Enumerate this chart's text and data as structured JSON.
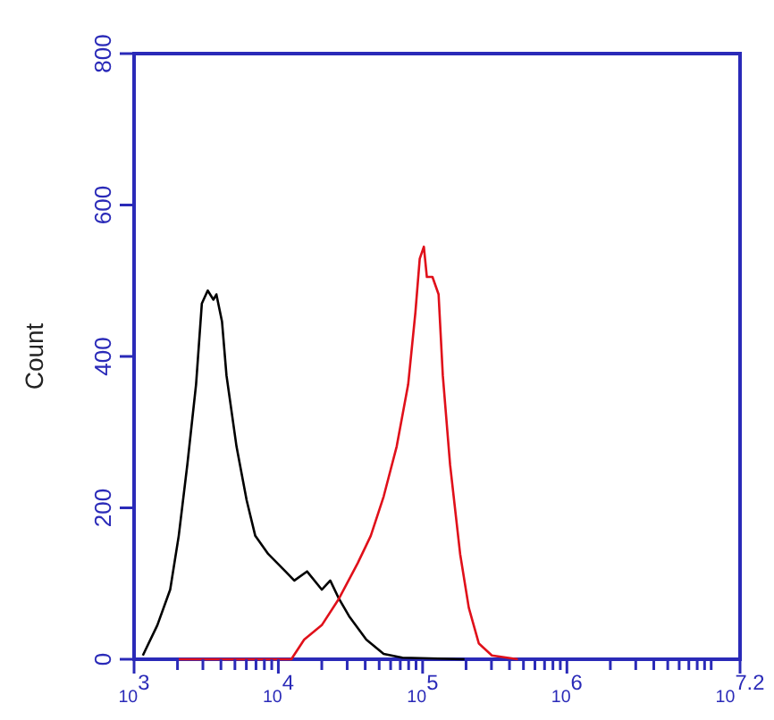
{
  "chart_data": {
    "type": "line",
    "ylabel": "Count",
    "log": "x",
    "grid": false,
    "marker": "none",
    "line_style": "solid",
    "xlim": [
      1000,
      15848932
    ],
    "xticks": [
      {
        "value": 1000,
        "label": "10$^{3}$"
      },
      {
        "value": 2000,
        "label": null
      },
      {
        "value": 3000,
        "label": null
      },
      {
        "value": 4000,
        "label": null
      },
      {
        "value": 5000,
        "label": null
      },
      {
        "value": 6000,
        "label": null
      },
      {
        "value": 7000,
        "label": null
      },
      {
        "value": 8000,
        "label": null
      },
      {
        "value": 9000,
        "label": null
      },
      {
        "value": 10000,
        "label": "10$^{4}$"
      },
      {
        "value": 20000,
        "label": null
      },
      {
        "value": 30000,
        "label": null
      },
      {
        "value": 40000,
        "label": null
      },
      {
        "value": 50000,
        "label": null
      },
      {
        "value": 60000,
        "label": null
      },
      {
        "value": 70000,
        "label": null
      },
      {
        "value": 80000,
        "label": null
      },
      {
        "value": 90000,
        "label": null
      },
      {
        "value": 100000,
        "label": "10$^{5}$"
      },
      {
        "value": 200000,
        "label": null
      },
      {
        "value": 300000,
        "label": null
      },
      {
        "value": 400000,
        "label": null
      },
      {
        "value": 500000,
        "label": null
      },
      {
        "value": 600000,
        "label": null
      },
      {
        "value": 700000,
        "label": null
      },
      {
        "value": 800000,
        "label": null
      },
      {
        "value": 900000,
        "label": null
      },
      {
        "value": 1000000,
        "label": "10$^{6}$"
      },
      {
        "value": 2000000,
        "label": null
      },
      {
        "value": 3000000,
        "label": null
      },
      {
        "value": 4000000,
        "label": null
      },
      {
        "value": 5000000,
        "label": null
      },
      {
        "value": 6000000,
        "label": null
      },
      {
        "value": 7000000,
        "label": null
      },
      {
        "value": 8000000,
        "label": null
      },
      {
        "value": 9000000,
        "label": null
      },
      {
        "value": 10000000,
        "label": null
      },
      {
        "value": 15848932,
        "label": "10$^{7.2}$"
      }
    ],
    "ylim": [
      0,
      800
    ],
    "yticks": [
      0,
      200,
      400,
      600,
      800
    ],
    "series": [
      {
        "color": "#000000",
        "x": [
          1150,
          1450,
          1780,
          2040,
          2340,
          2690,
          2950,
          3240,
          3550,
          3720,
          4070,
          4370,
          5130,
          6030,
          6920,
          8510,
          11200,
          12900,
          15800,
          20000,
          22900,
          26300,
          30900,
          40700,
          53700,
          72400,
          195000
        ],
        "values": [
          5,
          45,
          92,
          163,
          257,
          363,
          470,
          487,
          475,
          482,
          446,
          375,
          281,
          210,
          163,
          139,
          116,
          104,
          116,
          92,
          104,
          80,
          57,
          26,
          7,
          2,
          0
        ]
      },
      {
        "color": "#e0101a",
        "x": [
          2040,
          12300,
          15100,
          20000,
          26300,
          35500,
          43700,
          53700,
          66100,
          79400,
          89100,
          95500,
          102000,
          107000,
          117000,
          129000,
          138000,
          155000,
          182000,
          209000,
          245000,
          302000,
          457000
        ],
        "values": [
          0,
          0,
          26,
          45,
          80,
          127,
          163,
          215,
          281,
          363,
          458,
          529,
          545,
          505,
          505,
          482,
          375,
          257,
          139,
          68,
          21,
          5,
          0
        ]
      }
    ]
  }
}
